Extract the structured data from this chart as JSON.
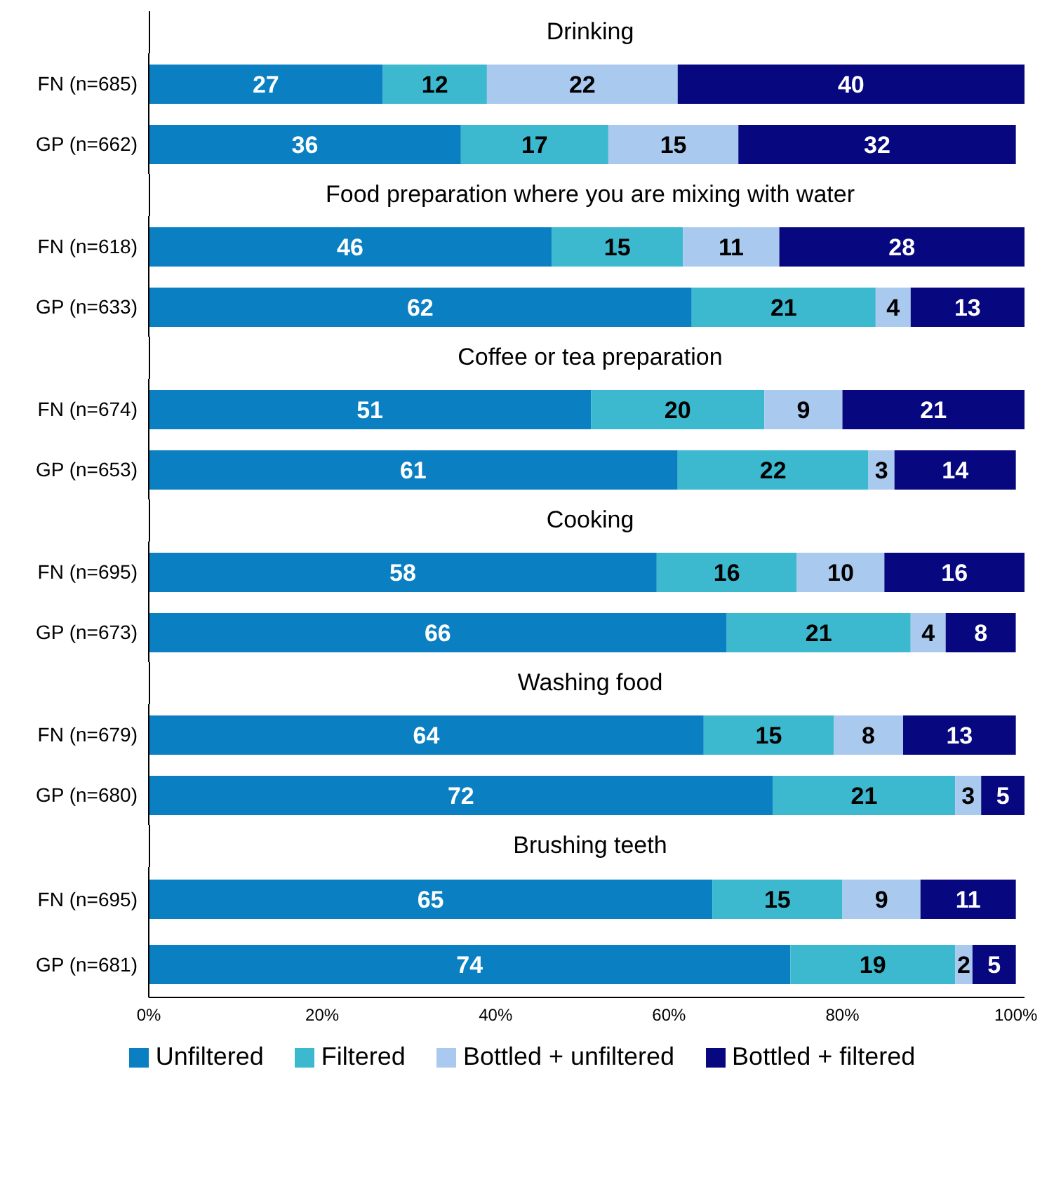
{
  "chart_data": [
    {
      "type": "bar",
      "orientation": "horizontal",
      "stacked": true,
      "title": "Drinking",
      "categories": [
        "FN (n=685)",
        "GP (n=662)"
      ],
      "series": [
        {
          "color": "#0a7fc2",
          "values": [
            27,
            36
          ]
        },
        {
          "color": "#3cb8cf",
          "values": [
            12,
            17
          ]
        },
        {
          "color": "#a9c9ee",
          "values": [
            22,
            15
          ]
        },
        {
          "color": "#07077f",
          "values": [
            40,
            32
          ]
        }
      ],
      "xlim": [
        0,
        101
      ],
      "data_labels": true,
      "tick_labels": "y"
    },
    {
      "type": "bar",
      "orientation": "horizontal",
      "stacked": true,
      "title": "Food preparation where you are mixing with water",
      "categories": [
        "FN (n=618)",
        "GP (n=633)"
      ],
      "series": [
        {
          "color": "#0a7fc2",
          "values": [
            46,
            62
          ]
        },
        {
          "color": "#3cb8cf",
          "values": [
            15,
            21
          ]
        },
        {
          "color": "#a9c9ee",
          "values": [
            11,
            4
          ]
        },
        {
          "color": "#07077f",
          "values": [
            28,
            13
          ]
        }
      ],
      "xlim": [
        0,
        100
      ],
      "data_labels": true,
      "tick_labels": "y"
    },
    {
      "type": "bar",
      "orientation": "horizontal",
      "stacked": true,
      "title": "Coffee or tea preparation",
      "categories": [
        "FN (n=674)",
        "GP (n=653)"
      ],
      "series": [
        {
          "color": "#0a7fc2",
          "values": [
            51,
            61
          ]
        },
        {
          "color": "#3cb8cf",
          "values": [
            20,
            22
          ]
        },
        {
          "color": "#a9c9ee",
          "values": [
            9,
            3
          ]
        },
        {
          "color": "#07077f",
          "values": [
            21,
            14
          ]
        }
      ],
      "xlim": [
        0,
        101
      ],
      "data_labels": true,
      "tick_labels": "y"
    },
    {
      "type": "bar",
      "orientation": "horizontal",
      "stacked": true,
      "title": "Cooking",
      "categories": [
        "FN (n=695)",
        "GP (n=673)"
      ],
      "series": [
        {
          "color": "#0a7fc2",
          "values": [
            58,
            66
          ]
        },
        {
          "color": "#3cb8cf",
          "values": [
            16,
            21
          ]
        },
        {
          "color": "#a9c9ee",
          "values": [
            10,
            4
          ]
        },
        {
          "color": "#07077f",
          "values": [
            16,
            8
          ]
        }
      ],
      "xlim": [
        0,
        100
      ],
      "data_labels": true,
      "tick_labels": "y"
    },
    {
      "type": "bar",
      "orientation": "horizontal",
      "stacked": true,
      "title": "Washing food",
      "categories": [
        "FN (n=679)",
        "GP (n=680)"
      ],
      "series": [
        {
          "color": "#0a7fc2",
          "values": [
            64,
            72
          ]
        },
        {
          "color": "#3cb8cf",
          "values": [
            15,
            21
          ]
        },
        {
          "color": "#a9c9ee",
          "values": [
            8,
            3
          ]
        },
        {
          "color": "#07077f",
          "values": [
            13,
            5
          ]
        }
      ],
      "xlim": [
        0,
        101
      ],
      "data_labels": true,
      "tick_labels": "y"
    },
    {
      "type": "bar",
      "orientation": "horizontal",
      "stacked": true,
      "title": "Brushing teeth",
      "categories": [
        "FN (n=695)",
        "GP (n=681)"
      ],
      "series": [
        {
          "name": "Unfiltered",
          "color": "#0a7fc2",
          "values": [
            65,
            74
          ]
        },
        {
          "name": "Filtered",
          "color": "#3cb8cf",
          "values": [
            15,
            19
          ]
        },
        {
          "name": "Bottled + unfiltered",
          "color": "#a9c9ee",
          "values": [
            9,
            2
          ]
        },
        {
          "name": "Bottled + filtered",
          "color": "#07077f",
          "values": [
            11,
            5
          ]
        }
      ],
      "xlim": [
        0,
        101
      ],
      "xticks": [
        {
          "value": 0,
          "label": "0%"
        },
        {
          "value": 20,
          "label": "20%"
        },
        {
          "value": 40,
          "label": "40%"
        },
        {
          "value": 60,
          "label": "60%"
        },
        {
          "value": 80,
          "label": "80%"
        },
        {
          "value": 100,
          "label": "100%"
        }
      ],
      "data_labels": true,
      "legend": "bottom"
    }
  ]
}
